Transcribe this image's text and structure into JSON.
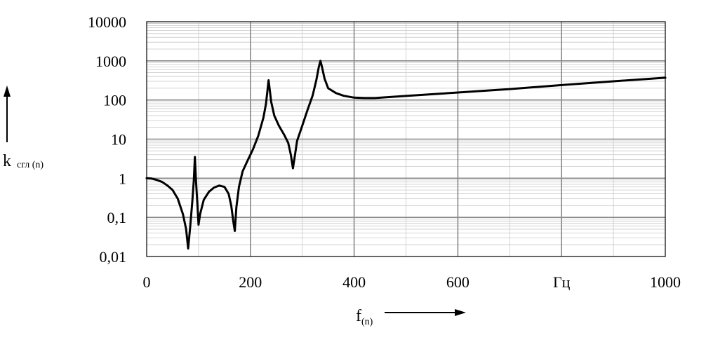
{
  "chart_data": {
    "type": "line",
    "title": "",
    "xlabel": "f",
    "xlabel_sub": "(n)",
    "ylabel": "k",
    "ylabel_sub": "сгл (n)",
    "x_unit": "Гц",
    "xlim": [
      0,
      1000
    ],
    "ylim": [
      0.01,
      10000
    ],
    "y_scale": "log",
    "grid": true,
    "x_ticks": [
      {
        "value": 0,
        "label": "0"
      },
      {
        "value": 200,
        "label": "200"
      },
      {
        "value": 400,
        "label": "400"
      },
      {
        "value": 600,
        "label": "600"
      },
      {
        "value": 1000,
        "label": "1000"
      }
    ],
    "x_unit_position": 800,
    "y_ticks": [
      {
        "value": 0.01,
        "label": "0,01"
      },
      {
        "value": 0.1,
        "label": "0,1"
      },
      {
        "value": 1,
        "label": "1"
      },
      {
        "value": 10,
        "label": "10"
      },
      {
        "value": 100,
        "label": "100"
      },
      {
        "value": 1000,
        "label": "1000"
      },
      {
        "value": 10000,
        "label": "10000"
      }
    ],
    "series": [
      {
        "color": "#000000",
        "points": [
          [
            0,
            1.0
          ],
          [
            10,
            0.98
          ],
          [
            20,
            0.9
          ],
          [
            30,
            0.8
          ],
          [
            40,
            0.65
          ],
          [
            50,
            0.5
          ],
          [
            60,
            0.3
          ],
          [
            70,
            0.12
          ],
          [
            76,
            0.05
          ],
          [
            80,
            0.016
          ],
          [
            84,
            0.06
          ],
          [
            88,
            0.25
          ],
          [
            91,
            0.9
          ],
          [
            93,
            3.5
          ],
          [
            95,
            0.9
          ],
          [
            98,
            0.2
          ],
          [
            100,
            0.065
          ],
          [
            103,
            0.12
          ],
          [
            110,
            0.28
          ],
          [
            120,
            0.45
          ],
          [
            130,
            0.58
          ],
          [
            140,
            0.65
          ],
          [
            150,
            0.6
          ],
          [
            158,
            0.4
          ],
          [
            163,
            0.2
          ],
          [
            167,
            0.08
          ],
          [
            170,
            0.045
          ],
          [
            173,
            0.18
          ],
          [
            178,
            0.6
          ],
          [
            185,
            1.5
          ],
          [
            195,
            2.9
          ],
          [
            205,
            5.5
          ],
          [
            215,
            12
          ],
          [
            225,
            35
          ],
          [
            230,
            80
          ],
          [
            233,
            180
          ],
          [
            235,
            320
          ],
          [
            237,
            200
          ],
          [
            240,
            90
          ],
          [
            246,
            40
          ],
          [
            255,
            22
          ],
          [
            265,
            13
          ],
          [
            273,
            8
          ],
          [
            278,
            4
          ],
          [
            282,
            1.8
          ],
          [
            286,
            4
          ],
          [
            290,
            9
          ],
          [
            300,
            22
          ],
          [
            310,
            55
          ],
          [
            320,
            130
          ],
          [
            327,
            320
          ],
          [
            332,
            700
          ],
          [
            335,
            1000
          ],
          [
            338,
            700
          ],
          [
            343,
            350
          ],
          [
            350,
            200
          ],
          [
            365,
            150
          ],
          [
            380,
            128
          ],
          [
            400,
            115
          ],
          [
            420,
            112
          ],
          [
            440,
            112
          ],
          [
            460,
            117
          ],
          [
            500,
            127
          ],
          [
            600,
            155
          ],
          [
            700,
            190
          ],
          [
            800,
            240
          ],
          [
            900,
            300
          ],
          [
            1000,
            370
          ]
        ]
      }
    ]
  }
}
